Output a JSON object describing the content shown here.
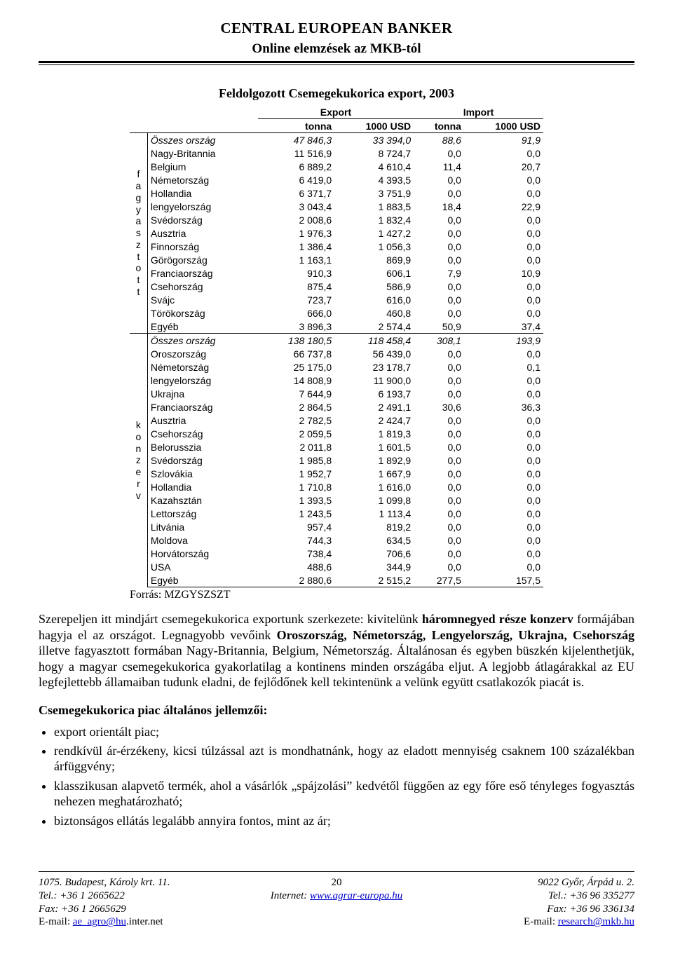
{
  "header": {
    "title": "CENTRAL EUROPEAN BANKER",
    "subtitle": "Online elemzések az MKB-tól"
  },
  "table": {
    "title": "Feldolgozott Csemegekukorica export, 2003",
    "group_headers": [
      "Export",
      "Import"
    ],
    "col_headers": [
      "tonna",
      "1000 USD",
      "tonna",
      "1000 USD"
    ],
    "group1_label_letters": [
      "f",
      "a",
      "g",
      "y",
      "a",
      "s",
      "z",
      "t",
      "o",
      "t",
      "t"
    ],
    "group2_label_letters": [
      "k",
      "o",
      "n",
      "z",
      "e",
      "r",
      "v"
    ],
    "group1": [
      {
        "n": "Összes ország",
        "v": [
          "47 846,3",
          "33 394,0",
          "88,6",
          "91,9"
        ],
        "italic": true
      },
      {
        "n": "Nagy-Britannia",
        "v": [
          "11 516,9",
          "8 724,7",
          "0,0",
          "0,0"
        ]
      },
      {
        "n": "Belgium",
        "v": [
          "6 889,2",
          "4 610,4",
          "11,4",
          "20,7"
        ]
      },
      {
        "n": "Németország",
        "v": [
          "6 419,0",
          "4 393,5",
          "0,0",
          "0,0"
        ]
      },
      {
        "n": "Hollandia",
        "v": [
          "6 371,7",
          "3 751,9",
          "0,0",
          "0,0"
        ]
      },
      {
        "n": "lengyelország",
        "v": [
          "3 043,4",
          "1 883,5",
          "18,4",
          "22,9"
        ]
      },
      {
        "n": "Svédország",
        "v": [
          "2 008,6",
          "1 832,4",
          "0,0",
          "0,0"
        ]
      },
      {
        "n": "Ausztria",
        "v": [
          "1 976,3",
          "1 427,2",
          "0,0",
          "0,0"
        ]
      },
      {
        "n": "Finnország",
        "v": [
          "1 386,4",
          "1 056,3",
          "0,0",
          "0,0"
        ]
      },
      {
        "n": "Görögország",
        "v": [
          "1 163,1",
          "869,9",
          "0,0",
          "0,0"
        ]
      },
      {
        "n": "Franciaország",
        "v": [
          "910,3",
          "606,1",
          "7,9",
          "10,9"
        ]
      },
      {
        "n": "Csehország",
        "v": [
          "875,4",
          "586,9",
          "0,0",
          "0,0"
        ]
      },
      {
        "n": "Svájc",
        "v": [
          "723,7",
          "616,0",
          "0,0",
          "0,0"
        ]
      },
      {
        "n": "Törökország",
        "v": [
          "666,0",
          "460,8",
          "0,0",
          "0,0"
        ]
      },
      {
        "n": "Egyéb",
        "v": [
          "3 896,3",
          "2 574,4",
          "50,9",
          "37,4"
        ]
      }
    ],
    "group2": [
      {
        "n": "Összes ország",
        "v": [
          "138 180,5",
          "118 458,4",
          "308,1",
          "193,9"
        ],
        "italic": true
      },
      {
        "n": "Oroszország",
        "v": [
          "66 737,8",
          "56 439,0",
          "0,0",
          "0,0"
        ]
      },
      {
        "n": "Németország",
        "v": [
          "25 175,0",
          "23 178,7",
          "0,0",
          "0,1"
        ]
      },
      {
        "n": "lengyelország",
        "v": [
          "14 808,9",
          "11 900,0",
          "0,0",
          "0,0"
        ]
      },
      {
        "n": "Ukrajna",
        "v": [
          "7 644,9",
          "6 193,7",
          "0,0",
          "0,0"
        ]
      },
      {
        "n": "Franciaország",
        "v": [
          "2 864,5",
          "2 491,1",
          "30,6",
          "36,3"
        ]
      },
      {
        "n": "Ausztria",
        "v": [
          "2 782,5",
          "2 424,7",
          "0,0",
          "0,0"
        ]
      },
      {
        "n": "Csehország",
        "v": [
          "2 059,5",
          "1 819,3",
          "0,0",
          "0,0"
        ]
      },
      {
        "n": "Belorusszia",
        "v": [
          "2 011,8",
          "1 601,5",
          "0,0",
          "0,0"
        ]
      },
      {
        "n": "Svédország",
        "v": [
          "1 985,8",
          "1 892,9",
          "0,0",
          "0,0"
        ]
      },
      {
        "n": "Szlovákia",
        "v": [
          "1 952,7",
          "1 667,9",
          "0,0",
          "0,0"
        ]
      },
      {
        "n": "Hollandia",
        "v": [
          "1 710,8",
          "1 616,0",
          "0,0",
          "0,0"
        ]
      },
      {
        "n": "Kazahsztán",
        "v": [
          "1 393,5",
          "1 099,8",
          "0,0",
          "0,0"
        ]
      },
      {
        "n": "Lettország",
        "v": [
          "1 243,5",
          "1 113,4",
          "0,0",
          "0,0"
        ]
      },
      {
        "n": "Litvánia",
        "v": [
          "957,4",
          "819,2",
          "0,0",
          "0,0"
        ]
      },
      {
        "n": "Moldova",
        "v": [
          "744,3",
          "634,5",
          "0,0",
          "0,0"
        ]
      },
      {
        "n": "Horvátország",
        "v": [
          "738,4",
          "706,6",
          "0,0",
          "0,0"
        ]
      },
      {
        "n": "USA",
        "v": [
          "488,6",
          "344,9",
          "0,0",
          "0,0"
        ]
      },
      {
        "n": "Egyéb",
        "v": [
          "2 880,6",
          "2 515,2",
          "277,5",
          "157,5"
        ]
      }
    ],
    "source": "Forrás: MZGYSZSZT"
  },
  "paragraph": {
    "pre": "Szerepeljen itt mindjárt csemegekukorica exportunk szerkezete: kivitelünk ",
    "bold1": "háromnegyed része konzerv",
    "mid1": " formájában hagyja el az országot. Legnagyobb vevőink ",
    "bold2": "Oroszország, Németország, Lengyelország, Ukrajna, Csehország",
    "mid2": " illetve fagyasztott formában Nagy-Britannia, Belgium, Németország. Általánosan és egyben büszkén kijelenthetjük, hogy a magyar csemegekukorica gyakorlatilag a kontinens minden országába eljut. A legjobb átlagárakkal az EU legfejlettebb államaiban tudunk eladni, de fejlődőnek kell tekintenünk a velünk együtt csatlakozók piacát is."
  },
  "list_title": "Csemegekukorica piac általános jellemzői:",
  "bullets": [
    "export orientált piac;",
    "rendkívül ár-érzékeny, kicsi túlzással azt is mondhatnánk, hogy az eladott mennyiség csaknem 100 százalékban árfüggvény;",
    "klasszikusan alapvető termék, ahol a vásárlók „spájzolási” kedvétől függően az egy főre eső tényleges fogyasztás nehezen meghatározható;",
    "biztonságos ellátás legalább annyira fontos, mint az ár;"
  ],
  "footer": {
    "left": {
      "l1": "1075. Budapest, Károly krt. 11.",
      "l2": "Tel.: +36 1 2665622",
      "l3": "Fax: +36 1 2665629",
      "l4a": "E-mail: ",
      "l4b": "ae_agro@hu",
      "l4c": ".inter.net"
    },
    "center": {
      "page": "20",
      "l2a": "Internet: ",
      "l2b": "www.agrar-europa.hu"
    },
    "right": {
      "l1": "9022 Győr, Árpád u. 2.",
      "l2": "Tel.: +36 96 335277",
      "l3": "Fax: +36 96 336134",
      "l4a": "E-mail: ",
      "l4b": "research@mkb.hu"
    }
  }
}
